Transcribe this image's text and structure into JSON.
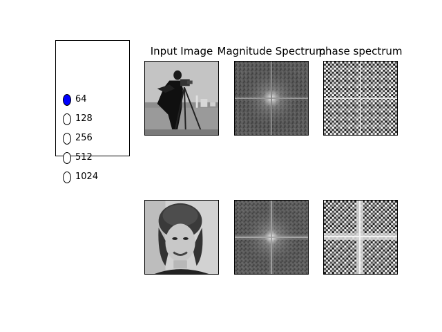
{
  "radio": {
    "options": [
      "64",
      "128",
      "256",
      "512",
      "1024"
    ],
    "selected_index": 0,
    "selected_color": "#0000ff"
  },
  "titles": {
    "input": "Input Image",
    "magnitude": "Magnitude Spectrum",
    "phase": "phase spectrum"
  },
  "plots": {
    "row1": {
      "input_image": "cameraman-photo",
      "magnitude": "magnitude-spectrum",
      "phase": "phase-spectrum"
    },
    "row2": {
      "input_image": "woman-portrait-photo",
      "magnitude": "magnitude-spectrum",
      "phase": "phase-spectrum"
    }
  }
}
